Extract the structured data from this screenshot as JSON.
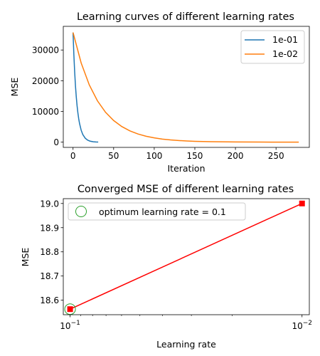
{
  "chart_data": [
    {
      "type": "line",
      "title": "Learning curves of different learning rates",
      "xlabel": "Iteration",
      "ylabel": "MSE",
      "xlim": [
        -12,
        291
      ],
      "ylim": [
        -1700,
        37700
      ],
      "xticks": [
        0,
        50,
        100,
        150,
        200,
        250
      ],
      "yticks": [
        0,
        10000,
        20000,
        30000
      ],
      "grid": false,
      "legend_position": "upper right",
      "series": [
        {
          "name": "1e-01",
          "color": "#1f77b4",
          "x": [
            0,
            1,
            2,
            3,
            4,
            5,
            6,
            7,
            8,
            10,
            12,
            15,
            18,
            21,
            25,
            28,
            31
          ],
          "y": [
            35700,
            28600,
            22900,
            18300,
            14700,
            11800,
            9500,
            7600,
            6100,
            3900,
            2500,
            1300,
            650,
            330,
            120,
            60,
            30
          ]
        },
        {
          "name": "1e-02",
          "color": "#ff7f0e",
          "x": [
            0,
            10,
            20,
            30,
            40,
            50,
            60,
            70,
            80,
            90,
            100,
            110,
            120,
            130,
            140,
            150,
            170,
            200,
            230,
            260,
            278
          ],
          "y": [
            35700,
            25800,
            18650,
            13480,
            9740,
            7040,
            5090,
            3680,
            2660,
            1920,
            1390,
            1000,
            725,
            525,
            380,
            275,
            145,
            55,
            25,
            18,
            15
          ]
        }
      ]
    },
    {
      "type": "line",
      "title": "Converged MSE of different learning rates",
      "xlabel": "Learning rate",
      "ylabel": "MSE",
      "x_scale": "log",
      "x_inverted": true,
      "xlim": [
        0.107,
        0.0093
      ],
      "ylim": [
        18.54,
        19.02
      ],
      "xticks": [
        {
          "value": 0.1,
          "base": "10",
          "exp": "−1"
        },
        {
          "value": 0.01,
          "base": "10",
          "exp": "−2"
        }
      ],
      "yticks": [
        18.6,
        18.7,
        18.8,
        18.9,
        19.0
      ],
      "grid": false,
      "legend_position": "upper left",
      "series": [
        {
          "color": "#ff0000",
          "marker": "square",
          "x": [
            0.1,
            0.01
          ],
          "y": [
            18.563,
            19.0
          ]
        }
      ],
      "optimum": {
        "label": "optimum learning rate = 0.1",
        "x": 0.1,
        "y": 18.563,
        "color": "#2ca02c"
      }
    }
  ]
}
